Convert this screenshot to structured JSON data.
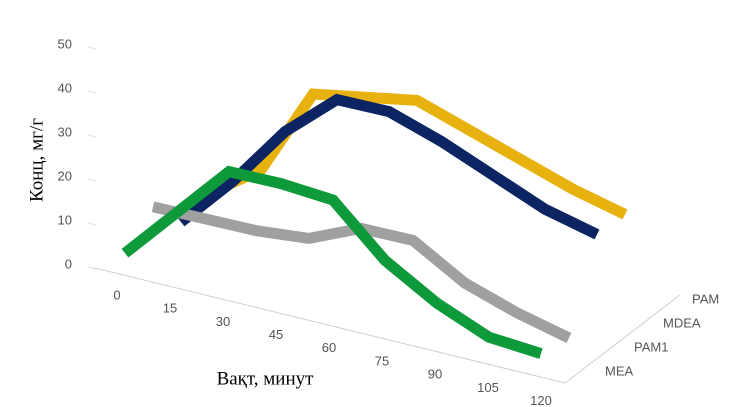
{
  "chart_data": {
    "type": "line3d",
    "xlabel": "Вақт, минут",
    "ylabel": "Конц, мг/г",
    "categories": [
      "0",
      "15",
      "30",
      "45",
      "60",
      "75",
      "90",
      "105",
      "120"
    ],
    "ylim": [
      0,
      50
    ],
    "yticks": [
      0,
      10,
      20,
      30,
      40,
      50
    ],
    "series": [
      {
        "name": "MEA",
        "color": "#0e9a3a",
        "values": [
          2,
          14,
          26,
          26,
          25,
          14,
          7,
          2,
          1
        ]
      },
      {
        "name": "PAM1",
        "color": "#a0a0a0",
        "values": [
          8,
          8,
          8,
          9,
          14,
          14,
          7,
          3,
          0
        ]
      },
      {
        "name": "MDEA",
        "color": "#0c2461",
        "values": [
          0,
          12,
          26,
          36,
          36,
          32,
          27,
          22,
          19
        ]
      },
      {
        "name": "PAM",
        "color": "#e8b20e",
        "values": [
          2,
          10,
          30,
          32,
          34,
          30,
          26,
          22,
          19
        ]
      }
    ]
  }
}
